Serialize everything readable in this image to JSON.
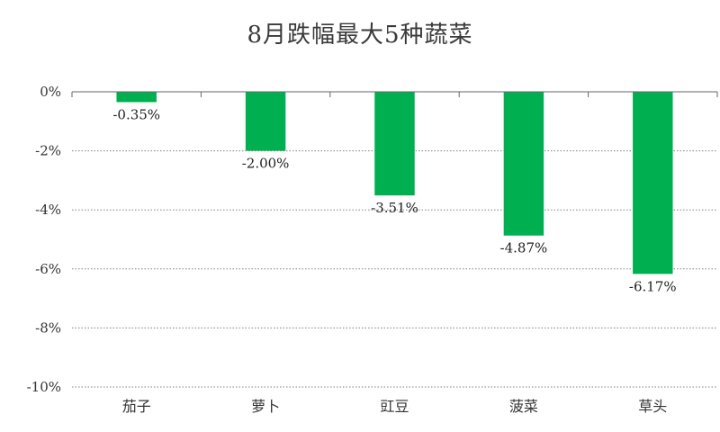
{
  "chart_data": {
    "type": "bar",
    "title": "8月跌幅最大5种蔬菜",
    "categories": [
      "茄子",
      "萝卜",
      "豇豆",
      "菠菜",
      "草头"
    ],
    "values": [
      -0.35,
      -2.0,
      -3.51,
      -4.87,
      -6.17
    ],
    "data_labels": [
      "-0.35%",
      "-2.00%",
      "-3.51%",
      "-4.87%",
      "-6.17%"
    ],
    "ylim": [
      -10,
      0
    ],
    "yticks": [
      0,
      -2,
      -4,
      -6,
      -8,
      -10
    ],
    "ytick_labels": [
      "0%",
      "-2%",
      "-4%",
      "-6%",
      "-8%",
      "-10%"
    ],
    "grid": true,
    "legend": "none",
    "bar_color": "#00b050",
    "grid_color": "#808080"
  }
}
